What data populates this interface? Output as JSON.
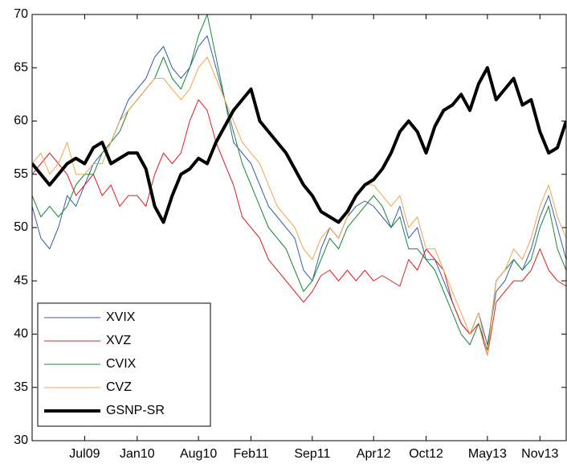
{
  "chart_data": {
    "type": "line",
    "x": [
      "2009-01",
      "2009-02",
      "2009-03",
      "2009-04",
      "2009-05",
      "2009-06",
      "2009-07",
      "2009-08",
      "2009-09",
      "2009-10",
      "2009-11",
      "2009-12",
      "2010-01",
      "2010-02",
      "2010-03",
      "2010-04",
      "2010-05",
      "2010-06",
      "2010-07",
      "2010-08",
      "2010-09",
      "2010-10",
      "2010-11",
      "2010-12",
      "2011-01",
      "2011-02",
      "2011-03",
      "2011-04",
      "2011-05",
      "2011-06",
      "2011-07",
      "2011-08",
      "2011-09",
      "2011-10",
      "2011-11",
      "2011-12",
      "2012-01",
      "2012-02",
      "2012-03",
      "2012-04",
      "2012-05",
      "2012-06",
      "2012-07",
      "2012-08",
      "2012-09",
      "2012-10",
      "2012-11",
      "2012-12",
      "2013-01",
      "2013-02",
      "2013-03",
      "2013-04",
      "2013-05",
      "2013-06",
      "2013-07",
      "2013-08",
      "2013-09",
      "2013-10",
      "2013-11",
      "2013-12",
      "2014-01",
      "2014-02"
    ],
    "series": [
      {
        "name": "XVIX",
        "color": "#3a5fa8",
        "width": 1,
        "values": [
          52,
          49,
          48,
          50,
          53,
          52,
          54,
          56,
          57,
          58,
          60,
          62,
          63,
          64,
          66,
          67,
          65,
          64,
          65,
          67,
          68,
          65,
          62,
          58,
          57,
          56,
          54,
          52,
          51,
          50,
          49,
          46,
          45,
          48,
          50,
          49,
          51,
          52,
          52.5,
          52,
          51,
          50,
          52,
          49,
          50,
          47,
          47,
          45,
          43,
          41,
          40,
          42,
          39,
          44,
          45,
          47,
          46,
          48,
          51,
          53,
          50,
          47
        ]
      },
      {
        "name": "XVZ",
        "color": "#e02020",
        "width": 1,
        "values": [
          55,
          56,
          57,
          56,
          55,
          53,
          54,
          55,
          53,
          54,
          52,
          53,
          53,
          52,
          55,
          57,
          56,
          57,
          60,
          62,
          61,
          58,
          56,
          54,
          51,
          50,
          49,
          47,
          46,
          45,
          44,
          43,
          44,
          45.5,
          46,
          45,
          46,
          45,
          46,
          45,
          45.5,
          45,
          44.5,
          47,
          46,
          48,
          47,
          46,
          43,
          41,
          40,
          41,
          38,
          43,
          44,
          45,
          45,
          46,
          48,
          46,
          45,
          44.5
        ]
      },
      {
        "name": "CVIX",
        "color": "#1a8a3a",
        "width": 1,
        "values": [
          53,
          51,
          52,
          51,
          52,
          54,
          55,
          55,
          57,
          58,
          59,
          61,
          62,
          63,
          64,
          66,
          64,
          63,
          65,
          68,
          70,
          66,
          62,
          59,
          56,
          54,
          52,
          50,
          49,
          48,
          46,
          44,
          45,
          47,
          49,
          48,
          50,
          51,
          52,
          53,
          52,
          50,
          51,
          48,
          48,
          47,
          46,
          44,
          42,
          40,
          39,
          41,
          38.5,
          45,
          46,
          47,
          46,
          47,
          50,
          52,
          48,
          46
        ]
      },
      {
        "name": "CVZ",
        "color": "#f0a850",
        "width": 1,
        "values": [
          56,
          57,
          55,
          56,
          58,
          55,
          55,
          56,
          56,
          58,
          60,
          61,
          62,
          63,
          64,
          64,
          63,
          62,
          63,
          65,
          66,
          64,
          62,
          60,
          58,
          57,
          56,
          54,
          52,
          51,
          50,
          48,
          47,
          49,
          50,
          49,
          51,
          53,
          54,
          54,
          53,
          52,
          53,
          50,
          51,
          48,
          48,
          46,
          44,
          42,
          40,
          42,
          38,
          45,
          46,
          48,
          47,
          49,
          52,
          54,
          51,
          49
        ]
      },
      {
        "name": "GSNP-SR",
        "color": "#000000",
        "width": 4,
        "values": [
          56,
          55,
          54,
          55,
          56,
          56.5,
          56,
          57.5,
          58,
          56,
          56.5,
          57,
          57,
          55.5,
          52,
          50.5,
          53,
          55,
          55.5,
          56.5,
          56,
          58,
          59.5,
          61,
          62,
          63,
          60,
          59,
          58,
          57,
          55.5,
          54,
          53,
          51.5,
          51,
          50.5,
          51.5,
          53,
          54,
          54.5,
          55.5,
          57,
          59,
          60,
          59,
          57,
          59.5,
          61,
          61.5,
          62.5,
          61,
          63.5,
          65,
          62,
          63,
          64,
          61.5,
          62,
          59,
          57,
          57.5,
          60
        ]
      }
    ],
    "xlim": [
      "2009-01",
      "2014-02"
    ],
    "xticks": [
      {
        "value": "2009-07",
        "label": "Jul09"
      },
      {
        "value": "2010-01",
        "label": "Jan10"
      },
      {
        "value": "2010-08",
        "label": "Aug10"
      },
      {
        "value": "2011-02",
        "label": "Feb11"
      },
      {
        "value": "2011-09",
        "label": "Sep11"
      },
      {
        "value": "2012-04",
        "label": "Apr12"
      },
      {
        "value": "2012-10",
        "label": "Oct12"
      },
      {
        "value": "2013-05",
        "label": "May13"
      },
      {
        "value": "2013-11",
        "label": "Nov13"
      }
    ],
    "ylim": [
      30,
      70
    ],
    "yticks": [
      30,
      35,
      40,
      45,
      50,
      55,
      60,
      65,
      70
    ],
    "legend": "lower left"
  }
}
